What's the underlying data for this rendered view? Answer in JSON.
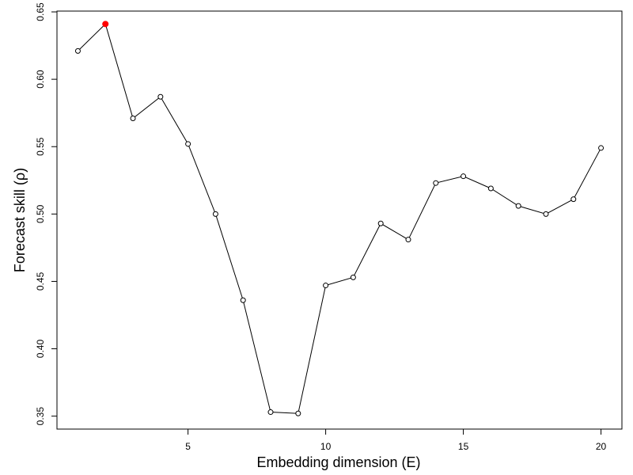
{
  "chart_data": {
    "type": "line",
    "xlabel": "Embedding dimension (E)",
    "ylabel": "Forecast skill (ρ)",
    "x": [
      1,
      2,
      3,
      4,
      5,
      6,
      7,
      8,
      9,
      10,
      11,
      12,
      13,
      14,
      15,
      16,
      17,
      18,
      19,
      20
    ],
    "series": [
      {
        "values": [
          0.621,
          0.641,
          0.571,
          0.587,
          0.552,
          0.5,
          0.436,
          0.353,
          0.352,
          0.447,
          0.453,
          0.493,
          0.481,
          0.523,
          0.528,
          0.519,
          0.506,
          0.5,
          0.511,
          0.549
        ]
      }
    ],
    "highlight_index": 1,
    "highlight_color": "#ff0000",
    "xlim": [
      0.24,
      20.76
    ],
    "ylim": [
      0.3404,
      0.6506
    ],
    "xticks": [
      5,
      10,
      15,
      20
    ],
    "xtick_labels": [
      "5",
      "10",
      "15",
      "20"
    ],
    "yticks": [
      0.35,
      0.4,
      0.45,
      0.5,
      0.55,
      0.6,
      0.65
    ],
    "ytick_labels": [
      "0.35",
      "0.40",
      "0.45",
      "0.50",
      "0.55",
      "0.60",
      "0.65"
    ],
    "grid": false,
    "legend": false
  }
}
